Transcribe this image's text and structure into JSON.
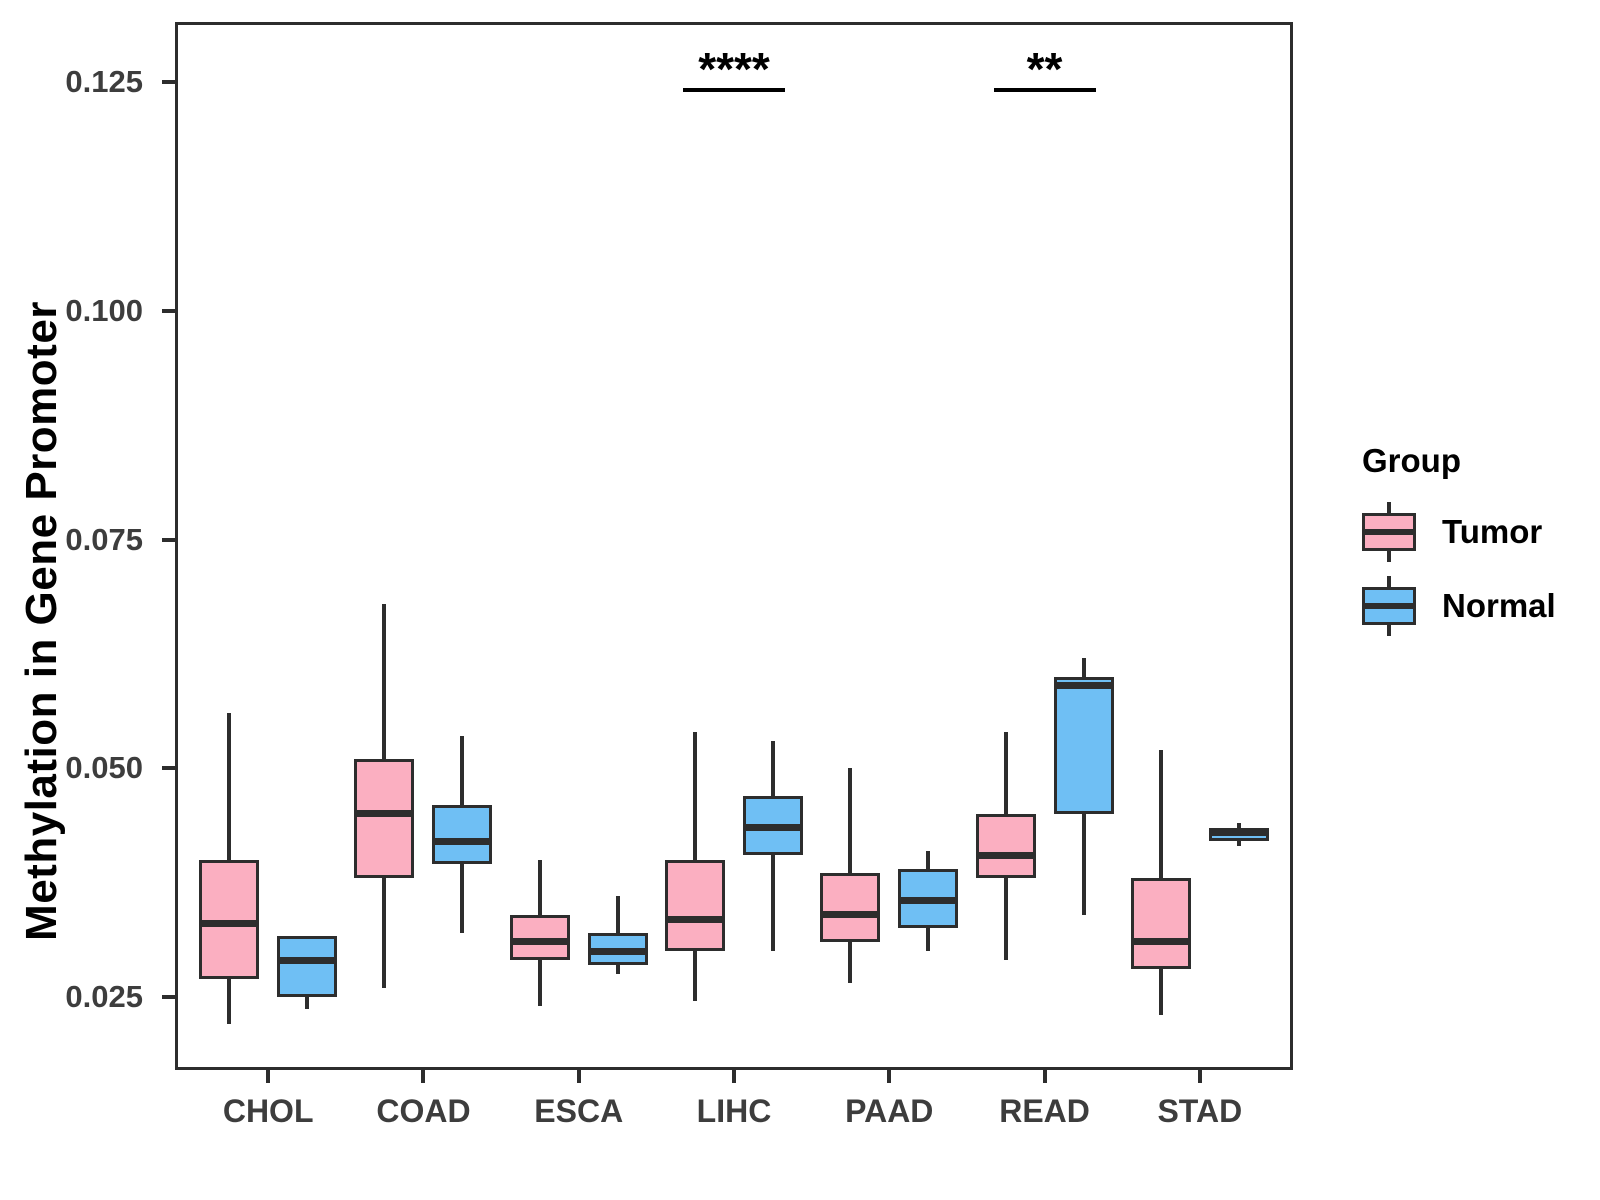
{
  "figure": {
    "legend": {
      "title": "Group",
      "entries": [
        {
          "label": "Tumor",
          "color": "#FBAFC1"
        },
        {
          "label": "Normal",
          "color": "#6FBFF4"
        }
      ]
    }
  },
  "chart_data": {
    "type": "grouped_boxplot",
    "title": "",
    "xlabel": "",
    "ylabel": "Methylation in Gene Promoter",
    "categories": [
      "CHOL",
      "COAD",
      "ESCA",
      "LIHC",
      "PAAD",
      "READ",
      "STAD"
    ],
    "yticks": [
      0.025,
      0.05,
      0.075,
      0.1,
      0.125
    ],
    "ytick_labels": [
      "0.025",
      "0.050",
      "0.075",
      "0.100",
      "0.125"
    ],
    "ylim": [
      0.017,
      0.1316
    ],
    "grid": "off",
    "legend_position": "right",
    "series": [
      {
        "name": "Tumor",
        "color": "#FBAFC1",
        "boxes": [
          {
            "category": "CHOL",
            "low": 0.022,
            "q1": 0.027,
            "median": 0.033,
            "q3": 0.04,
            "high": 0.056
          },
          {
            "category": "COAD",
            "low": 0.026,
            "q1": 0.038,
            "median": 0.045,
            "q3": 0.051,
            "high": 0.068
          },
          {
            "category": "ESCA",
            "low": 0.024,
            "q1": 0.029,
            "median": 0.031,
            "q3": 0.034,
            "high": 0.04
          },
          {
            "category": "LIHC",
            "low": 0.0245,
            "q1": 0.03,
            "median": 0.0335,
            "q3": 0.04,
            "high": 0.054
          },
          {
            "category": "PAAD",
            "low": 0.0265,
            "q1": 0.031,
            "median": 0.034,
            "q3": 0.0385,
            "high": 0.05
          },
          {
            "category": "READ",
            "low": 0.029,
            "q1": 0.038,
            "median": 0.0405,
            "q3": 0.045,
            "high": 0.054
          },
          {
            "category": "STAD",
            "low": 0.023,
            "q1": 0.028,
            "median": 0.031,
            "q3": 0.038,
            "high": 0.052
          }
        ]
      },
      {
        "name": "Normal",
        "color": "#6FBFF4",
        "boxes": [
          {
            "category": "CHOL",
            "low": 0.0237,
            "q1": 0.025,
            "median": 0.029,
            "q3": 0.0317,
            "high": 0.0317
          },
          {
            "category": "COAD",
            "low": 0.032,
            "q1": 0.0395,
            "median": 0.042,
            "q3": 0.046,
            "high": 0.0535
          },
          {
            "category": "ESCA",
            "low": 0.0275,
            "q1": 0.0285,
            "median": 0.03,
            "q3": 0.032,
            "high": 0.036
          },
          {
            "category": "LIHC",
            "low": 0.03,
            "q1": 0.0405,
            "median": 0.0435,
            "q3": 0.047,
            "high": 0.053
          },
          {
            "category": "PAAD",
            "low": 0.03,
            "q1": 0.0325,
            "median": 0.0355,
            "q3": 0.039,
            "high": 0.041
          },
          {
            "category": "READ",
            "low": 0.034,
            "q1": 0.045,
            "median": 0.059,
            "q3": 0.06,
            "high": 0.062
          },
          {
            "category": "STAD",
            "low": 0.0415,
            "q1": 0.042,
            "median": 0.043,
            "q3": 0.0435,
            "high": 0.044
          }
        ]
      }
    ],
    "annotations": [
      {
        "category": "LIHC",
        "label": "****"
      },
      {
        "category": "READ",
        "label": "**"
      }
    ]
  }
}
